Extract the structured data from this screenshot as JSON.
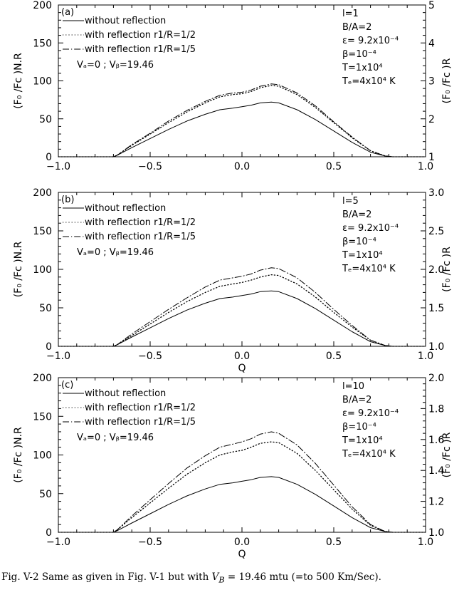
{
  "chart_data": [
    {
      "type": "line",
      "panel_label": "(a)",
      "xlabel": "",
      "ylabel_left": "(F₀ /Fᴄ )N.R",
      "ylabel_right": "(F₀ /Fᴄ )R",
      "xlim": [
        -1.0,
        1.0
      ],
      "ylim_left": [
        0,
        200
      ],
      "ylim_right": [
        1,
        5
      ],
      "x_ticks": [
        "−1.0",
        "−0.5",
        "0.0",
        "0.5",
        "1.0"
      ],
      "y_ticks_left": [
        "0",
        "50",
        "100",
        "150",
        "200"
      ],
      "y_ticks_right": [
        "1",
        "2",
        "3",
        "4",
        "5"
      ],
      "legend": [
        {
          "text": "without reflection",
          "style": "solid"
        },
        {
          "text": "with reflection r1/R=1/2",
          "style": "dotted"
        },
        {
          "text": "with reflection r1/R=1/5",
          "style": "dashdot"
        }
      ],
      "velocity_note": "Vₐ=0 ; Vᵦ=19.46",
      "params": [
        "l=1",
        "B/A=2",
        "ε= 9.2x10⁻⁴",
        "β=10⁻⁴",
        "T=1x10⁴",
        "Tₑ=4x10⁴ K"
      ],
      "x": [
        -1.0,
        -0.8,
        -0.7,
        -0.68,
        -0.6,
        -0.5,
        -0.4,
        -0.3,
        -0.2,
        -0.12,
        -0.05,
        0.0,
        0.05,
        0.1,
        0.16,
        0.2,
        0.3,
        0.4,
        0.5,
        0.6,
        0.7,
        0.78,
        0.82,
        1.0
      ],
      "series": [
        {
          "name": "without reflection",
          "values": [
            0,
            0,
            0,
            2,
            12,
            24,
            36,
            47,
            56,
            62,
            64,
            66,
            68,
            71,
            72,
            71,
            62,
            49,
            34,
            19,
            6,
            1,
            0,
            0
          ]
        },
        {
          "name": "with reflection r1/R=1/2",
          "values": [
            0,
            0,
            0,
            2,
            15,
            30,
            45,
            59,
            71,
            79,
            82,
            83,
            86,
            91,
            94,
            93,
            82,
            65,
            45,
            25,
            8,
            1,
            0,
            0
          ]
        },
        {
          "name": "with reflection r1/R=1/5",
          "values": [
            0,
            0,
            0,
            2,
            16,
            31,
            47,
            61,
            73,
            81,
            84,
            85,
            88,
            93,
            96,
            95,
            84,
            67,
            46,
            26,
            8,
            1,
            0,
            0
          ]
        }
      ]
    },
    {
      "type": "line",
      "panel_label": "(b)",
      "xlabel": "Q",
      "ylabel_left": "(F₀ /Fᴄ )N.R",
      "ylabel_right": "(F₀ /Fᴄ )R",
      "xlim": [
        -1.0,
        1.0
      ],
      "ylim_left": [
        0,
        200
      ],
      "ylim_right": [
        1.0,
        3.0
      ],
      "x_ticks": [
        "−1.0",
        "−0.5",
        "0.0",
        "0.5",
        "1.0"
      ],
      "y_ticks_left": [
        "0",
        "50",
        "100",
        "150",
        "200"
      ],
      "y_ticks_right": [
        "1.0",
        "1.5",
        "2.0",
        "2.5",
        "3.0"
      ],
      "legend": [
        {
          "text": "without reflection",
          "style": "solid"
        },
        {
          "text": "with reflection r1/R=1/2",
          "style": "dotted"
        },
        {
          "text": "with reflection r1/R=1/5",
          "style": "dashdot"
        }
      ],
      "velocity_note": "Vₐ=0 ; Vᵦ=19.46",
      "params": [
        "l=5",
        "B/A=2",
        "ε= 9.2x10⁻⁴",
        "β=10⁻⁴",
        "T=1x10⁴",
        "Tₑ=4x10⁴ K"
      ],
      "x": [
        -1.0,
        -0.8,
        -0.7,
        -0.68,
        -0.6,
        -0.5,
        -0.4,
        -0.3,
        -0.2,
        -0.12,
        -0.05,
        0.0,
        0.05,
        0.1,
        0.16,
        0.2,
        0.3,
        0.4,
        0.5,
        0.6,
        0.7,
        0.78,
        0.82,
        1.0
      ],
      "series": [
        {
          "name": "without reflection",
          "values": [
            0,
            0,
            0,
            2,
            12,
            24,
            36,
            47,
            56,
            62,
            64,
            66,
            68,
            71,
            72,
            71,
            62,
            49,
            34,
            19,
            6,
            1,
            0,
            0
          ]
        },
        {
          "name": "with reflection r1/R=1/2",
          "values": [
            0,
            0,
            0,
            2,
            14,
            29,
            44,
            58,
            70,
            78,
            81,
            83,
            86,
            90,
            93,
            92,
            81,
            64,
            44,
            25,
            8,
            1,
            0,
            0
          ]
        },
        {
          "name": "with reflection r1/R=1/5",
          "values": [
            0,
            0,
            0,
            2,
            16,
            32,
            48,
            63,
            77,
            86,
            89,
            91,
            94,
            99,
            102,
            101,
            89,
            70,
            48,
            27,
            8,
            1,
            0,
            0
          ]
        }
      ]
    },
    {
      "type": "line",
      "panel_label": "(c)",
      "xlabel": "Q",
      "ylabel_left": "(F₀ /Fᴄ )N.R",
      "ylabel_right": "(F₀ /Fᴄ )R",
      "xlim": [
        -1.0,
        1.0
      ],
      "ylim_left": [
        0,
        200
      ],
      "ylim_right": [
        1.0,
        2.0
      ],
      "x_ticks": [
        "−1.0",
        "−0.5",
        "0.0",
        "0.5",
        "1.0"
      ],
      "y_ticks_left": [
        "0",
        "50",
        "100",
        "150",
        "200"
      ],
      "y_ticks_right": [
        "1.0",
        "1.2",
        "1.4",
        "1.6",
        "1.8",
        "2.0"
      ],
      "legend": [
        {
          "text": "without reflection",
          "style": "solid"
        },
        {
          "text": "with reflection r1/R=1/2",
          "style": "dotted"
        },
        {
          "text": "with reflection r1/R=1/5",
          "style": "dashdot"
        }
      ],
      "velocity_note": "Vₐ=0 ; Vᵦ=19.46",
      "params": [
        "l=10",
        "B/A=2",
        "ε= 9.2x10⁻⁴",
        "β=10⁻⁴",
        "T=1x10⁴",
        "Tₑ=4x10⁴ K"
      ],
      "x": [
        -1.0,
        -0.8,
        -0.7,
        -0.68,
        -0.6,
        -0.5,
        -0.4,
        -0.3,
        -0.2,
        -0.12,
        -0.05,
        0.0,
        0.05,
        0.1,
        0.16,
        0.2,
        0.3,
        0.4,
        0.5,
        0.6,
        0.7,
        0.78,
        0.82,
        1.0
      ],
      "series": [
        {
          "name": "without reflection",
          "values": [
            0,
            0,
            0,
            2,
            12,
            24,
            36,
            47,
            56,
            62,
            64,
            66,
            68,
            71,
            72,
            71,
            62,
            49,
            34,
            19,
            6,
            1,
            0,
            0
          ]
        },
        {
          "name": "with reflection r1/R=1/2",
          "values": [
            0,
            0,
            0,
            3,
            19,
            38,
            57,
            75,
            90,
            100,
            104,
            106,
            110,
            115,
            117,
            116,
            102,
            80,
            55,
            30,
            9,
            1,
            0,
            0
          ]
        },
        {
          "name": "with reflection r1/R=1/5",
          "values": [
            0,
            0,
            0,
            3,
            21,
            42,
            63,
            83,
            99,
            110,
            114,
            117,
            121,
            127,
            130,
            128,
            113,
            89,
            61,
            33,
            10,
            1,
            0,
            0
          ]
        }
      ]
    }
  ],
  "caption": {
    "prefix": "Fig. V-2 Same as given in Fig. V-1 but with ",
    "symbol": "V",
    "subscript": "B",
    "suffix": " = 19.46 mtu (=to 500 Km/Sec)."
  }
}
